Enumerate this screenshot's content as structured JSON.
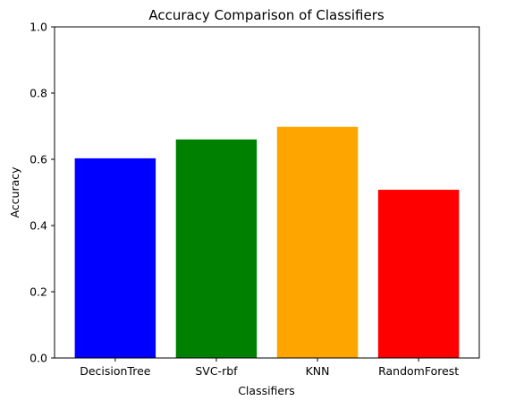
{
  "chart_data": {
    "type": "bar",
    "title": "Accuracy Comparison of Classifiers",
    "xlabel": "Classifiers",
    "ylabel": "Accuracy",
    "categories": [
      "DecisionTree",
      "SVC-rbf",
      "KNN",
      "RandomForest"
    ],
    "values": [
      0.603,
      0.66,
      0.698,
      0.508
    ],
    "colors": [
      "#0000ff",
      "#008000",
      "#ffa500",
      "#ff0000"
    ],
    "ylim": [
      0,
      1
    ],
    "yticks": [
      "0.0",
      "0.2",
      "0.4",
      "0.6",
      "0.8",
      "1.0"
    ],
    "grid": false,
    "legend": "none"
  }
}
